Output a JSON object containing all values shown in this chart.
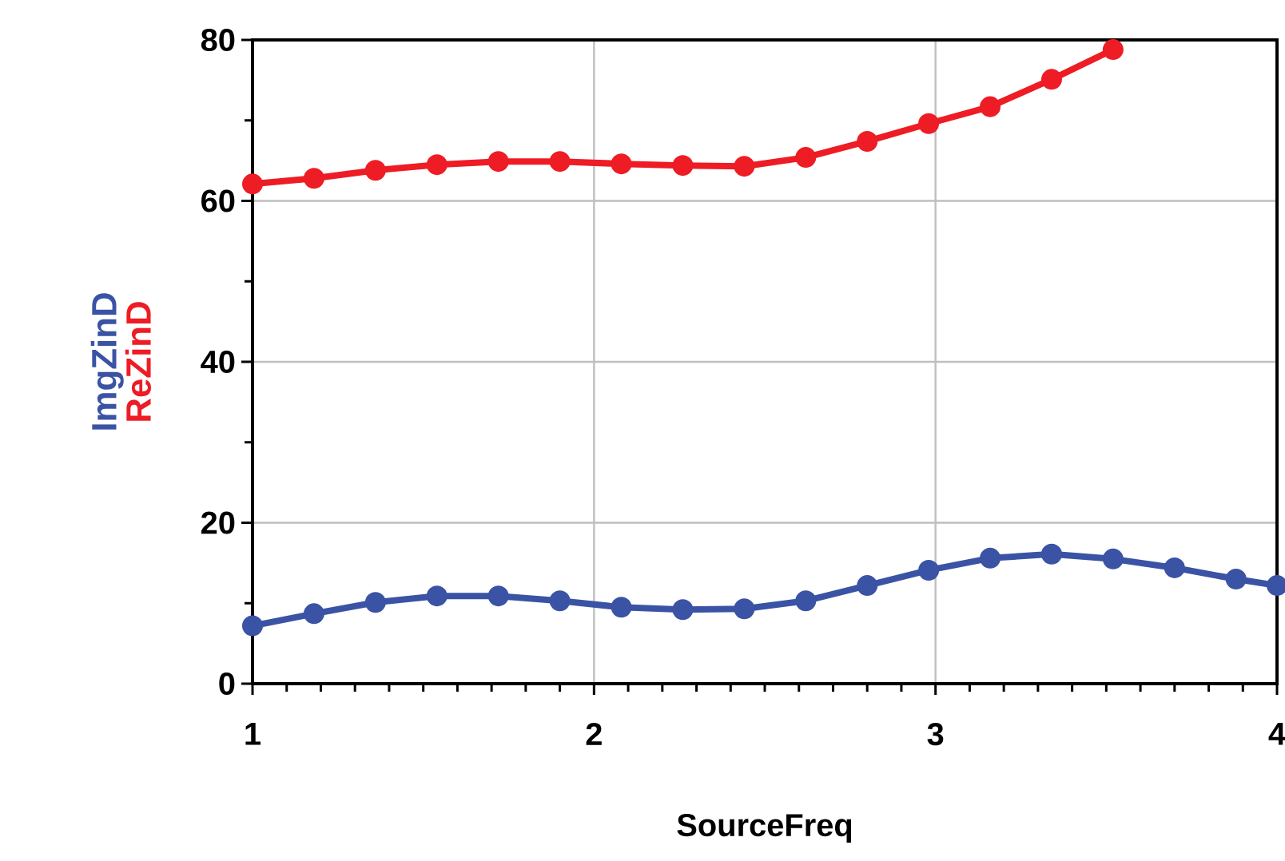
{
  "chart_data": {
    "type": "line",
    "xlabel": "SourceFreq",
    "x": [
      1,
      1.18,
      1.36,
      1.54,
      1.72,
      1.9,
      2.08,
      2.26,
      2.44,
      2.62,
      2.8,
      2.98,
      3.16,
      3.34,
      3.52,
      3.7,
      3.88,
      4
    ],
    "series": [
      {
        "name": "ImgZinD",
        "color": "#3a53a4",
        "values": [
          7.2,
          8.7,
          10.1,
          10.9,
          10.9,
          10.3,
          9.5,
          9.2,
          9.3,
          10.3,
          12.2,
          14.1,
          15.6,
          16.1,
          15.5,
          14.4,
          13.0,
          12.2
        ]
      },
      {
        "name": "ReZinD",
        "color": "#ee1c24",
        "values": [
          62.1,
          62.8,
          63.8,
          64.5,
          64.9,
          64.9,
          64.6,
          64.4,
          64.3,
          65.4,
          67.4,
          69.6,
          71.7,
          75.1,
          78.8,
          null,
          null,
          null
        ]
      }
    ],
    "xlim": [
      1,
      4
    ],
    "xticks": [
      1,
      2,
      3,
      4
    ],
    "ylim": [
      0,
      80
    ],
    "yticks": [
      0,
      20,
      40,
      60,
      80
    ],
    "grid": true,
    "marker": "circle",
    "line_style": "solid"
  }
}
